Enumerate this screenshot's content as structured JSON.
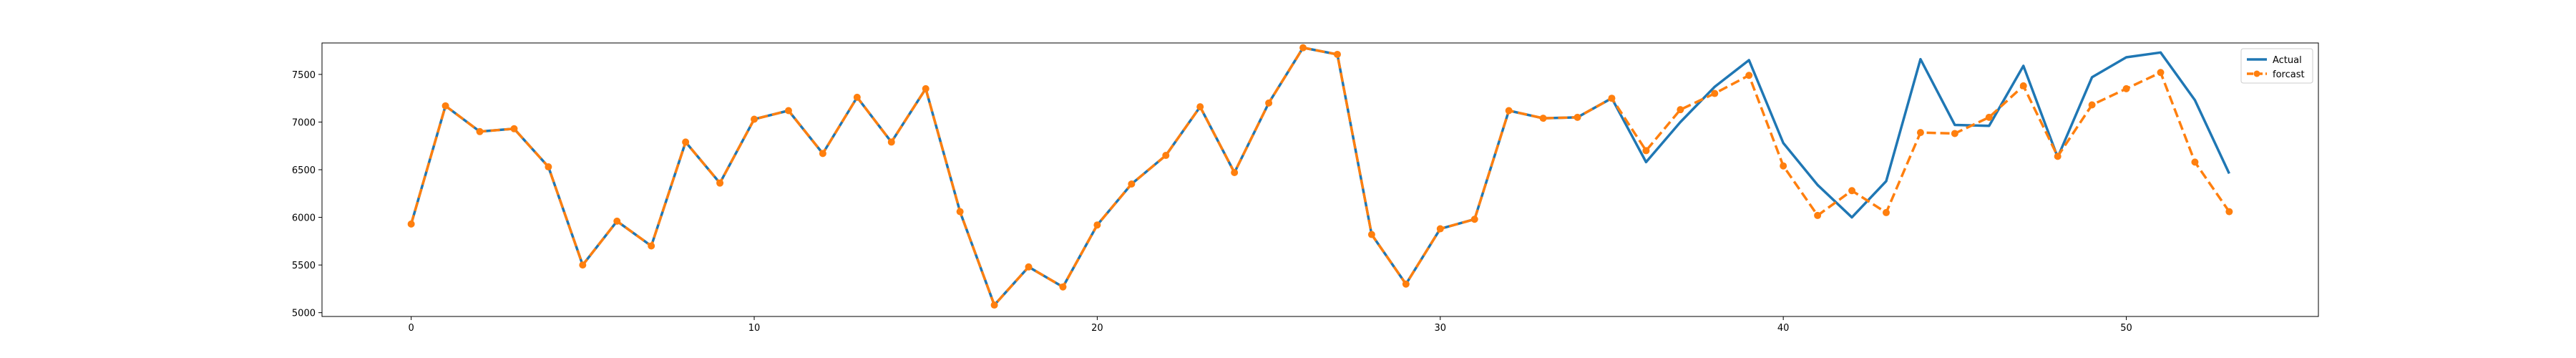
{
  "chart_data": {
    "type": "line",
    "title": "",
    "xlabel": "",
    "ylabel": "",
    "xlim": [
      -2.6,
      55.6
    ],
    "ylim": [
      4960,
      7830
    ],
    "x_ticks": [
      0,
      10,
      20,
      30,
      40,
      50
    ],
    "y_ticks": [
      5000,
      5500,
      6000,
      6500,
      7000,
      7500
    ],
    "grid": false,
    "legend_position": "upper right",
    "x": [
      0,
      1,
      2,
      3,
      4,
      5,
      6,
      7,
      8,
      9,
      10,
      11,
      12,
      13,
      14,
      15,
      16,
      17,
      18,
      19,
      20,
      21,
      22,
      23,
      24,
      25,
      26,
      27,
      28,
      29,
      30,
      31,
      32,
      33,
      34,
      35,
      36,
      37,
      38,
      39,
      40,
      41,
      42,
      43,
      44,
      45,
      46,
      47,
      48,
      49,
      50,
      51,
      52,
      53
    ],
    "series": [
      {
        "name": "Actual",
        "color": "#1f77b4",
        "style": "solid",
        "values": [
          5930,
          7170,
          6900,
          6930,
          6530,
          5500,
          5960,
          5700,
          6790,
          6360,
          7030,
          7120,
          6670,
          7260,
          6790,
          7350,
          6060,
          5080,
          5480,
          5270,
          5920,
          6350,
          6650,
          7160,
          6470,
          7200,
          7780,
          7710,
          5820,
          5300,
          5880,
          5980,
          7120,
          7040,
          7050,
          7250,
          6580,
          7000,
          7370,
          7650,
          6780,
          6340,
          6000,
          6380,
          7660,
          6970,
          6960,
          7590,
          6630,
          7470,
          7680,
          7730,
          7230,
          6460
        ]
      },
      {
        "name": "forcast",
        "color": "#ff7f0e",
        "style": "dashed",
        "marker": "circle",
        "values": [
          5930,
          7170,
          6900,
          6930,
          6530,
          5500,
          5960,
          5700,
          6790,
          6360,
          7030,
          7120,
          6670,
          7260,
          6790,
          7350,
          6060,
          5080,
          5480,
          5270,
          5920,
          6350,
          6650,
          7160,
          6470,
          7200,
          7780,
          7710,
          5820,
          5300,
          5880,
          5980,
          7120,
          7040,
          7050,
          7250,
          6700,
          7130,
          7300,
          7490,
          6540,
          6020,
          6280,
          6050,
          6890,
          6880,
          7050,
          7380,
          6640,
          7180,
          7350,
          7520,
          6580,
          6060
        ]
      }
    ]
  }
}
